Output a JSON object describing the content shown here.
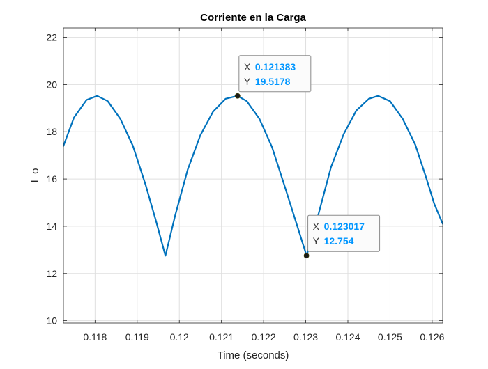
{
  "chart_data": {
    "type": "line",
    "title": "Corriente en la Carga",
    "xlabel": "Time (seconds)",
    "ylabel": "I_o",
    "xlim": [
      0.11725,
      0.12625
    ],
    "ylim": [
      9.9,
      22.4
    ],
    "xticks": [
      0.118,
      0.119,
      0.12,
      0.121,
      0.122,
      0.123,
      0.124,
      0.125,
      0.126
    ],
    "xtick_labels": [
      "0.118",
      "0.119",
      "0.12",
      "0.121",
      "0.122",
      "0.123",
      "0.124",
      "0.125",
      "0.126"
    ],
    "yticks": [
      10,
      12,
      14,
      16,
      18,
      20,
      22
    ],
    "ytick_labels": [
      "10",
      "12",
      "14",
      "16",
      "18",
      "20",
      "22"
    ],
    "grid": true,
    "line_color": "#0072BD",
    "series": [
      {
        "x": [
          0.11725,
          0.1175,
          0.1178,
          0.11805,
          0.1183,
          0.1186,
          0.1189,
          0.1192,
          0.11945,
          0.11967,
          0.1199,
          0.1202,
          0.1205,
          0.1208,
          0.1211,
          0.12138,
          0.1216,
          0.1219,
          0.1222,
          0.1225,
          0.1228,
          0.12302,
          0.1233,
          0.1236,
          0.1239,
          0.1242,
          0.1245,
          0.12472,
          0.125,
          0.1253,
          0.1256,
          0.12585,
          0.12605,
          0.12625
        ],
        "y": [
          17.4,
          18.6,
          19.35,
          19.52,
          19.3,
          18.55,
          17.4,
          15.75,
          14.2,
          12.75,
          14.45,
          16.4,
          17.85,
          18.85,
          19.4,
          19.52,
          19.3,
          18.55,
          17.35,
          15.7,
          14.0,
          12.75,
          14.5,
          16.5,
          17.9,
          18.9,
          19.4,
          19.52,
          19.3,
          18.55,
          17.45,
          16.1,
          14.95,
          14.1
        ]
      }
    ],
    "datatips": [
      {
        "x_key": "X",
        "x_value": "0.121383",
        "y_key": "Y",
        "y_value": "19.5178",
        "x": 0.121383,
        "y": 19.5178
      },
      {
        "x_key": "X",
        "x_value": "0.123017",
        "y_key": "Y",
        "y_value": "12.754",
        "x": 0.123017,
        "y": 12.754
      }
    ],
    "datatip_value_color": "#0096FF"
  }
}
